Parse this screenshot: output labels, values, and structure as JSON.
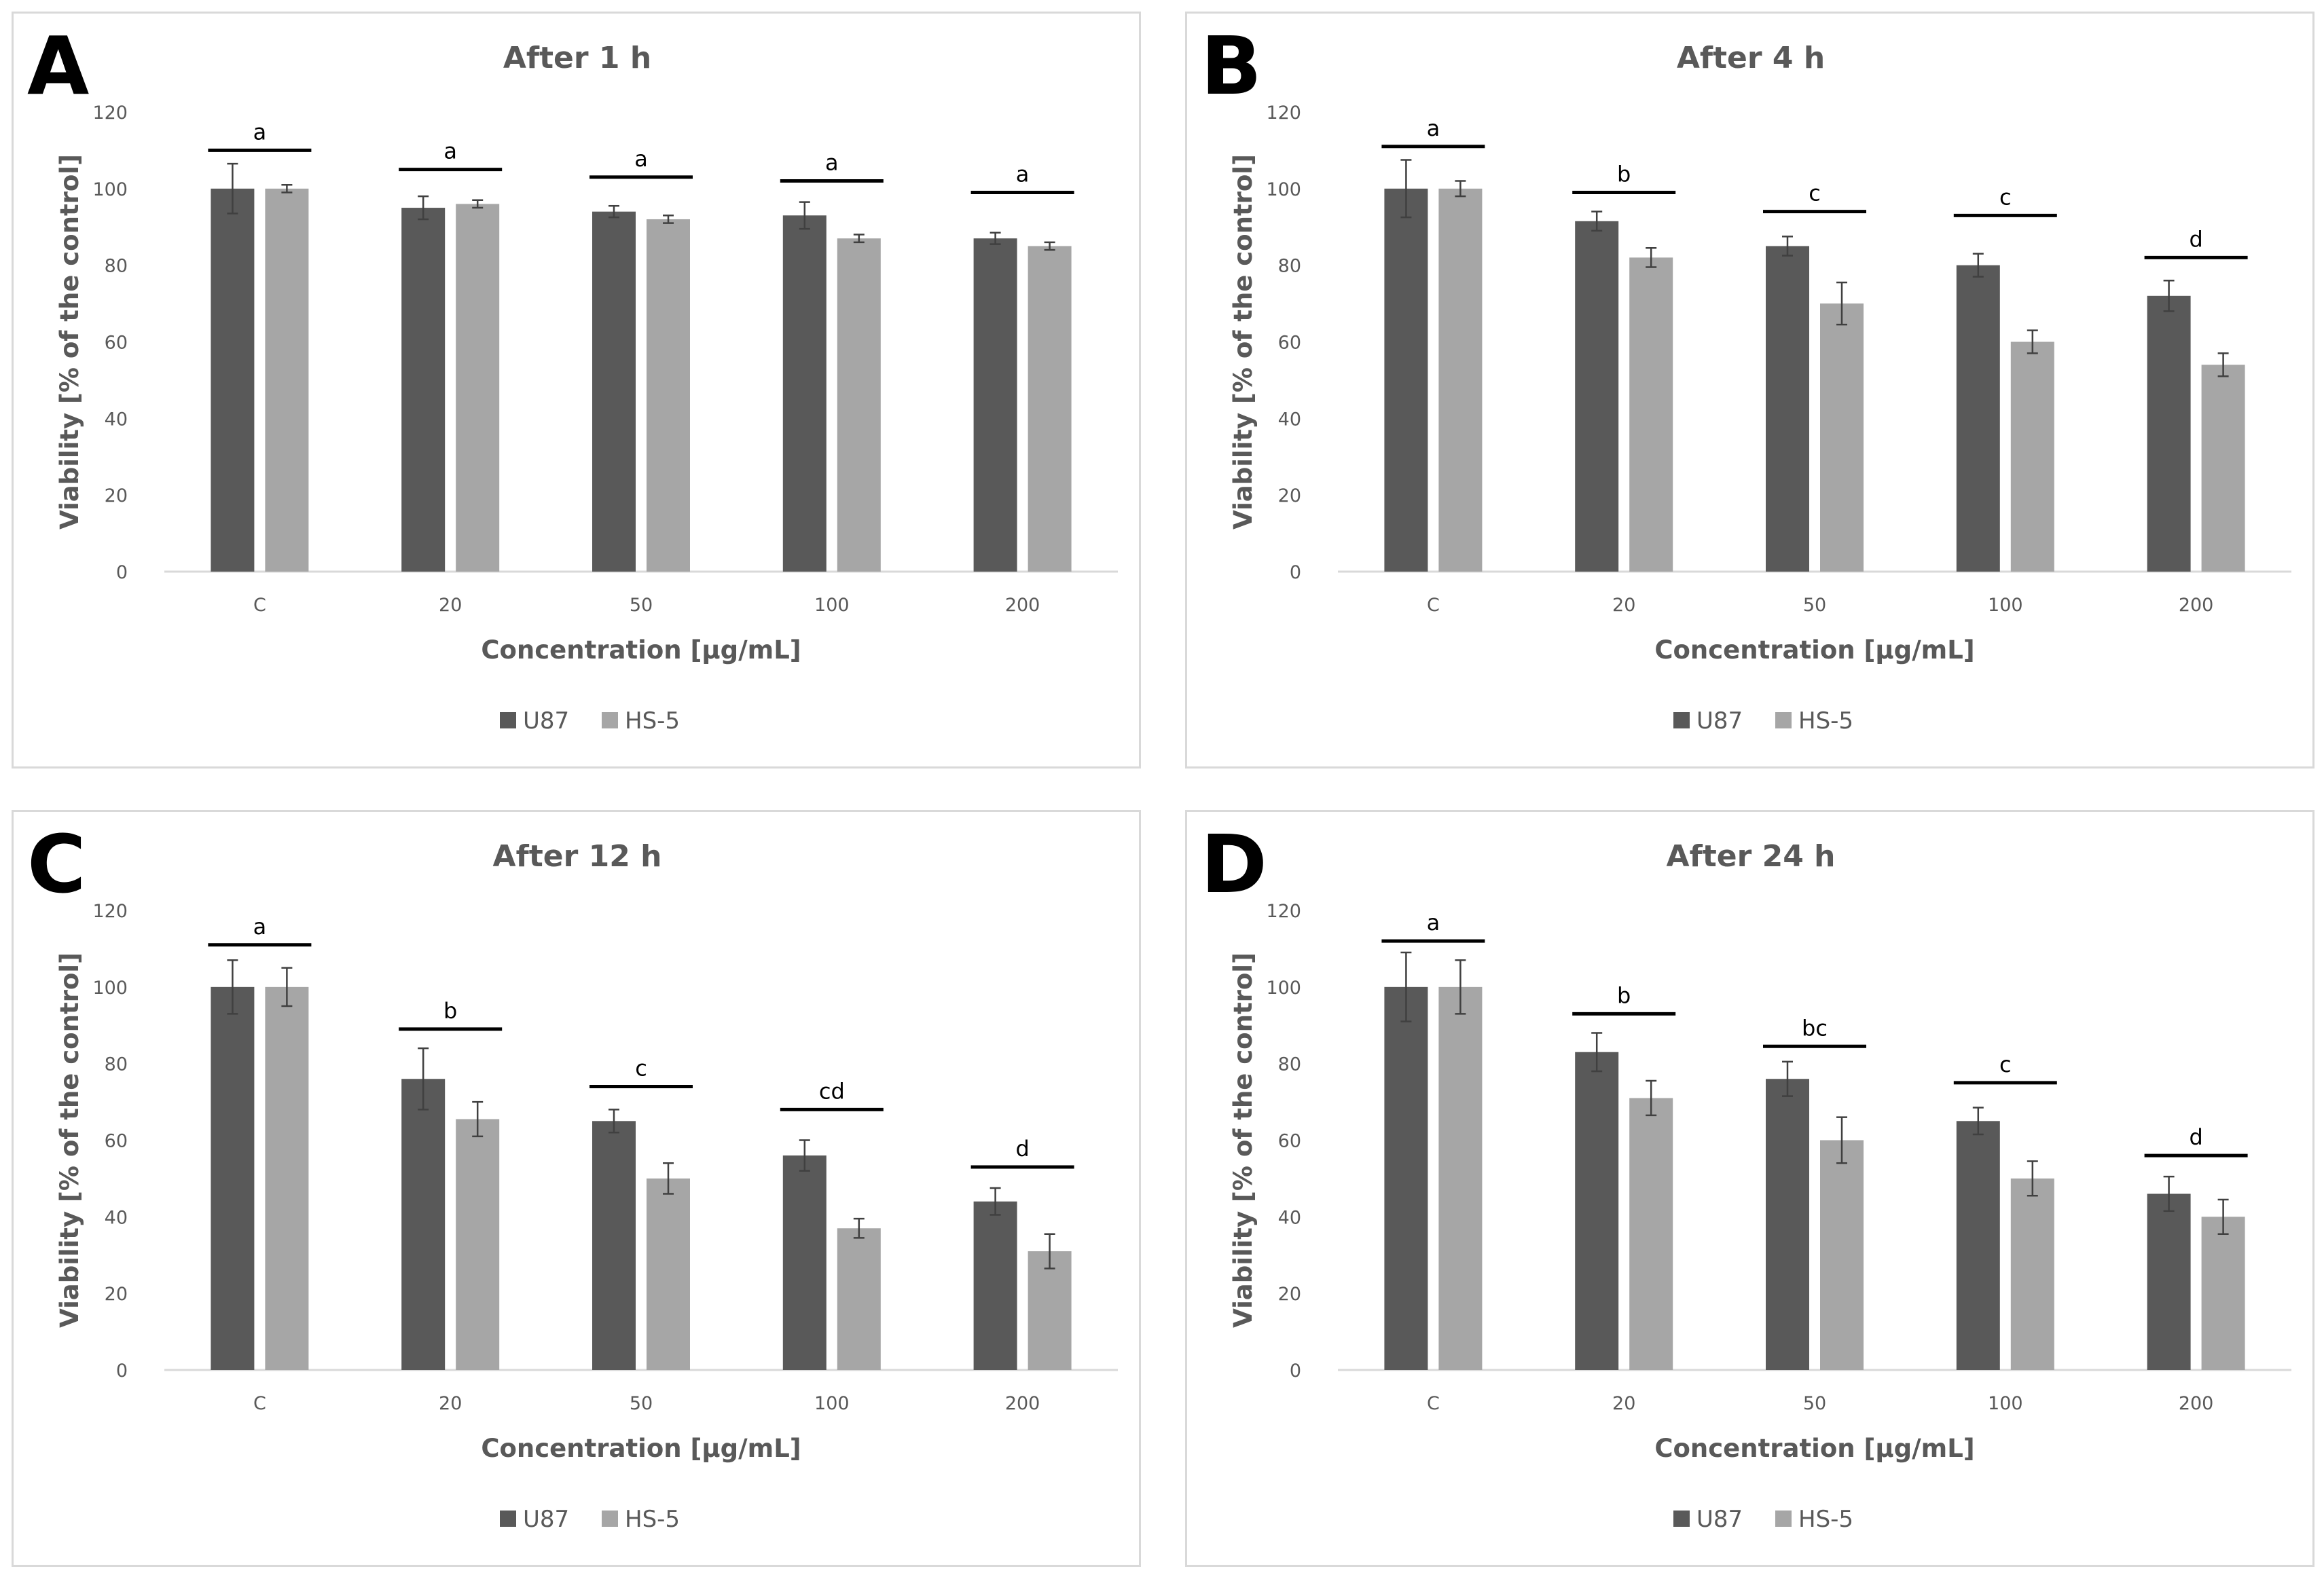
{
  "chart_data": [
    {
      "type": "bar",
      "panel_label": "A",
      "title": "After 1 h",
      "xlabel": "Concentration [µg/mL]",
      "ylabel": "Viability  [% of the control]",
      "ylim": [
        0,
        120
      ],
      "yticks": [
        "0",
        "20",
        "40",
        "60",
        "80",
        "100",
        "120"
      ],
      "categories": [
        "C",
        "20",
        "50",
        "100",
        "200"
      ],
      "series": [
        {
          "name": "U87",
          "color": "#595959",
          "values": [
            100,
            95,
            94,
            93,
            87
          ],
          "errors": [
            6.5,
            3,
            1.5,
            3.5,
            1.5
          ]
        },
        {
          "name": "HS-5",
          "color": "#a6a6a6",
          "values": [
            100,
            96,
            92,
            87,
            85
          ],
          "errors": [
            1,
            1,
            1,
            1,
            1
          ]
        }
      ],
      "significance": [
        {
          "label": "a",
          "y": 110
        },
        {
          "label": "a",
          "y": 105
        },
        {
          "label": "a",
          "y": 103
        },
        {
          "label": "a",
          "y": 102
        },
        {
          "label": "a",
          "y": 99
        }
      ],
      "legend": [
        "U87",
        "HS-5"
      ]
    },
    {
      "type": "bar",
      "panel_label": "B",
      "title": "After 4 h",
      "xlabel": "Concentration [µg/mL]",
      "ylabel": "Viability [% of the control]",
      "ylim": [
        0,
        120
      ],
      "yticks": [
        "0",
        "20",
        "40",
        "60",
        "80",
        "100",
        "120"
      ],
      "categories": [
        "C",
        "20",
        "50",
        "100",
        "200"
      ],
      "series": [
        {
          "name": "U87",
          "color": "#595959",
          "values": [
            100,
            91.5,
            85,
            80,
            72
          ],
          "errors": [
            7.5,
            2.5,
            2.5,
            3,
            4
          ]
        },
        {
          "name": "HS-5",
          "color": "#a6a6a6",
          "values": [
            100,
            82,
            70,
            60,
            54
          ],
          "errors": [
            2,
            2.5,
            5.5,
            3,
            3
          ]
        }
      ],
      "significance": [
        {
          "label": "a",
          "y": 111
        },
        {
          "label": "b",
          "y": 99
        },
        {
          "label": "c",
          "y": 94
        },
        {
          "label": "c",
          "y": 93
        },
        {
          "label": "d",
          "y": 82
        }
      ],
      "legend": [
        "U87",
        "HS-5"
      ]
    },
    {
      "type": "bar",
      "panel_label": "C",
      "title": "After 12 h",
      "xlabel": "Concentration [µg/mL]",
      "ylabel": "Viability [% of the control]",
      "ylim": [
        0,
        120
      ],
      "yticks": [
        "0",
        "20",
        "40",
        "60",
        "80",
        "100",
        "120"
      ],
      "categories": [
        "C",
        "20",
        "50",
        "100",
        "200"
      ],
      "series": [
        {
          "name": "U87",
          "color": "#595959",
          "values": [
            100,
            76,
            65,
            56,
            44
          ],
          "errors": [
            7,
            8,
            3,
            4,
            3.5
          ]
        },
        {
          "name": "HS-5",
          "color": "#a6a6a6",
          "values": [
            100,
            65.5,
            50,
            37,
            31
          ],
          "errors": [
            5,
            4.5,
            4,
            2.5,
            4.5
          ]
        }
      ],
      "significance": [
        {
          "label": "a",
          "y": 111
        },
        {
          "label": "b",
          "y": 89
        },
        {
          "label": "c",
          "y": 74
        },
        {
          "label": "cd",
          "y": 68
        },
        {
          "label": "d",
          "y": 53
        }
      ],
      "legend": [
        "U87",
        "HS-5"
      ]
    },
    {
      "type": "bar",
      "panel_label": "D",
      "title": "After 24 h",
      "xlabel": "Concentration [µg/mL]",
      "ylabel": "Viability [% of the control]",
      "ylim": [
        0,
        120
      ],
      "yticks": [
        "0",
        "20",
        "40",
        "60",
        "80",
        "100",
        "120"
      ],
      "categories": [
        "C",
        "20",
        "50",
        "100",
        "200"
      ],
      "series": [
        {
          "name": "U87",
          "color": "#595959",
          "values": [
            100,
            83,
            76,
            65,
            46
          ],
          "errors": [
            9,
            5,
            4.5,
            3.5,
            4.5
          ]
        },
        {
          "name": "HS-5",
          "color": "#a6a6a6",
          "values": [
            100,
            71,
            60,
            50,
            40
          ],
          "errors": [
            7,
            4.5,
            6,
            4.5,
            4.5
          ]
        }
      ],
      "significance": [
        {
          "label": "a",
          "y": 112
        },
        {
          "label": "b",
          "y": 93
        },
        {
          "label": "bc",
          "y": 84.5
        },
        {
          "label": "c",
          "y": 75
        },
        {
          "label": "d",
          "y": 56
        }
      ],
      "legend": [
        "U87",
        "HS-5"
      ]
    }
  ]
}
